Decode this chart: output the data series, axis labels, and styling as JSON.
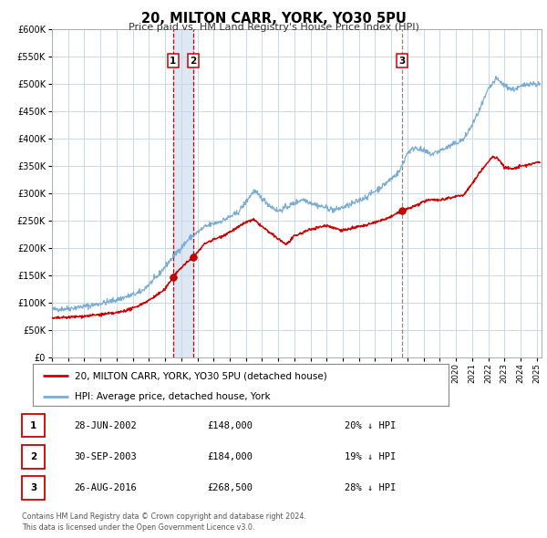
{
  "title": "20, MILTON CARR, YORK, YO30 5PU",
  "subtitle": "Price paid vs. HM Land Registry's House Price Index (HPI)",
  "ylim": [
    0,
    600000
  ],
  "xlim_start": 1995.0,
  "xlim_end": 2025.3,
  "ytick_labels": [
    "£0",
    "£50K",
    "£100K",
    "£150K",
    "£200K",
    "£250K",
    "£300K",
    "£350K",
    "£400K",
    "£450K",
    "£500K",
    "£550K",
    "£600K"
  ],
  "ytick_values": [
    0,
    50000,
    100000,
    150000,
    200000,
    250000,
    300000,
    350000,
    400000,
    450000,
    500000,
    550000,
    600000
  ],
  "transaction_color": "#cc0000",
  "hpi_color": "#7aadd4",
  "sale_points": [
    {
      "date_num": 2002.49,
      "price": 148000,
      "label": "1"
    },
    {
      "date_num": 2003.75,
      "price": 184000,
      "label": "2"
    },
    {
      "date_num": 2016.65,
      "price": 268500,
      "label": "3"
    }
  ],
  "vline1_x": 2002.49,
  "vline2_x": 2003.75,
  "vline3_x": 2016.65,
  "table_rows": [
    {
      "num": "1",
      "date": "28-JUN-2002",
      "price": "£148,000",
      "pct": "20% ↓ HPI"
    },
    {
      "num": "2",
      "date": "30-SEP-2003",
      "price": "£184,000",
      "pct": "19% ↓ HPI"
    },
    {
      "num": "3",
      "date": "26-AUG-2016",
      "price": "£268,500",
      "pct": "28% ↓ HPI"
    }
  ],
  "legend_line1": "20, MILTON CARR, YORK, YO30 5PU (detached house)",
  "legend_line2": "HPI: Average price, detached house, York",
  "footnote": "Contains HM Land Registry data © Crown copyright and database right 2024.\nThis data is licensed under the Open Government Licence v3.0.",
  "background_color": "#ffffff",
  "grid_color": "#c8d8e8",
  "shade_color": "#dde8f4"
}
